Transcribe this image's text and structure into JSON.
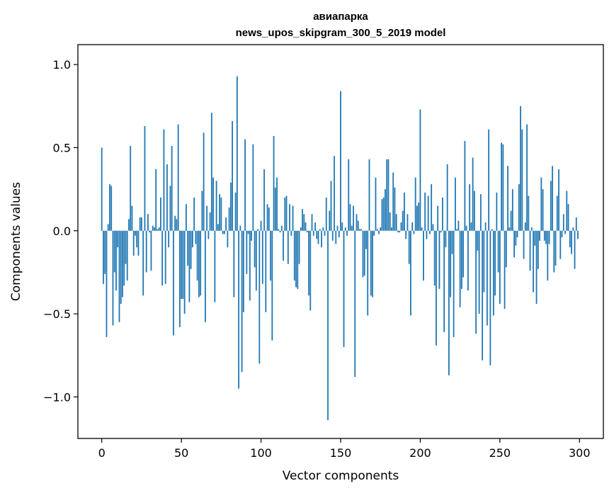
{
  "chart_data": {
    "type": "bar",
    "title": "авиапарка",
    "subtitle": "news_upos_skipgram_300_5_2019 model",
    "xlabel": "Vector components",
    "ylabel": "Components values",
    "xlim": [
      -15,
      315
    ],
    "ylim": [
      -1.25,
      1.12
    ],
    "xticks": [
      0,
      50,
      100,
      150,
      200,
      250,
      300
    ],
    "xtick_labels": [
      "0",
      "50",
      "100",
      "150",
      "200",
      "250",
      "300"
    ],
    "yticks": [
      -1.0,
      -0.5,
      0.0,
      0.5,
      1.0
    ],
    "ytick_labels": [
      "−1.0",
      "−0.5",
      "0.0",
      "0.5",
      "1.0"
    ],
    "grid": false,
    "bar_color": "#1f77b4",
    "values": [
      0.5,
      -0.32,
      -0.26,
      -0.64,
      0.04,
      0.28,
      0.27,
      -0.57,
      -0.25,
      -0.36,
      -0.1,
      -0.55,
      -0.44,
      -0.4,
      -0.33,
      -0.2,
      -0.3,
      0.07,
      0.51,
      0.15,
      -0.15,
      -0.03,
      -0.1,
      -0.15,
      0.08,
      0.08,
      -0.39,
      0.63,
      -0.25,
      0.1,
      -0.01,
      -0.24,
      0.03,
      0.02,
      0.37,
      0.01,
      0.02,
      0.2,
      -0.33,
      0.61,
      -0.32,
      0.4,
      -0.1,
      0.27,
      0.51,
      -0.63,
      0.09,
      0.07,
      0.64,
      -0.58,
      -0.41,
      -0.41,
      -0.5,
      0.16,
      -0.21,
      -0.43,
      -0.23,
      -0.1,
      0.2,
      -0.08,
      -0.3,
      -0.4,
      -0.39,
      0.24,
      0.59,
      -0.55,
      0.15,
      -0.05,
      0.11,
      0.71,
      0.32,
      -0.43,
      0.3,
      0.04,
      0.22,
      0.2,
      -0.02,
      -0.02,
      0.08,
      -0.1,
      0.14,
      0.29,
      0.66,
      -0.4,
      0.23,
      0.93,
      -0.95,
      0.03,
      -0.85,
      -0.49,
      0.55,
      -0.26,
      -0.02,
      -0.42,
      -0.06,
      0.52,
      -0.22,
      -0.36,
      0.01,
      -0.8,
      0.06,
      -0.32,
      0.37,
      -0.49,
      0.16,
      0.14,
      -0.3,
      -0.66,
      0.57,
      0.26,
      0.32,
      0.01,
      -0.01,
      0.03,
      -0.18,
      0.2,
      0.21,
      -0.2,
      0.16,
      -0.03,
      0.15,
      -0.3,
      -0.34,
      -0.35,
      -0.2,
      0.02,
      0.13,
      0.1,
      0.05,
      -0.01,
      -0.39,
      -0.48,
      0.1,
      -0.03,
      0.05,
      -0.05,
      -0.08,
      0.01,
      -0.1,
      0.02,
      -0.03,
      0.2,
      -1.14,
      0.12,
      0.3,
      -0.06,
      0.45,
      -0.08,
      0.03,
      -0.04,
      0.84,
      0.05,
      -0.7,
      0.02,
      -0.03,
      0.43,
      0.16,
      0.03,
      0.15,
      -0.88,
      0.1,
      0.06,
      0.01,
      0.01,
      -0.28,
      -0.27,
      -0.11,
      -0.51,
      0.43,
      -0.39,
      -0.4,
      -0.03,
      0.32,
      0.01,
      -0.02,
      0.02,
      0.19,
      0.2,
      0.25,
      0.43,
      0.43,
      0.11,
      0.02,
      0.35,
      0.26,
      0.1,
      -0.01,
      -0.01,
      0.05,
      0.12,
      0.23,
      -0.05,
      0.1,
      -0.2,
      -0.51,
      0.05,
      -0.02,
      0.32,
      0.15,
      0.17,
      0.73,
      0.02,
      -0.3,
      0.23,
      -0.05,
      0.21,
      -0.02,
      0.28,
      0.04,
      -0.33,
      -0.69,
      0.15,
      -0.35,
      -0.01,
      0.2,
      -0.61,
      -0.1,
      0.4,
      -0.87,
      -0.4,
      -0.14,
      -0.64,
      0.32,
      0.01,
      0.06,
      -0.46,
      -0.35,
      -0.28,
      0.54,
      0.03,
      -0.36,
      0.28,
      0.05,
      0.44,
      0.24,
      -0.62,
      -0.12,
      -0.5,
      0.22,
      -0.78,
      -0.37,
      0.05,
      -0.57,
      0.61,
      -0.81,
      0.01,
      -0.51,
      -0.39,
      0.23,
      -0.25,
      -0.44,
      0.53,
      0.52,
      -0.47,
      -0.22,
      0.39,
      0.02,
      0.12,
      0.25,
      -0.16,
      -0.09,
      -0.04,
      0.28,
      0.75,
      0.61,
      -0.17,
      0.05,
      0.64,
      0.21,
      -0.24,
      0.02,
      -0.37,
      -0.09,
      -0.44,
      -0.23,
      -0.06,
      0.32,
      0.25,
      -0.06,
      -0.08,
      -0.3,
      -0.08,
      0.3,
      0.39,
      -0.25,
      -0.21,
      0.21,
      0.37,
      -0.17,
      -0.04,
      0.1,
      -0.02,
      0.24,
      0.16,
      -0.1,
      -0.14,
      0.02,
      -0.23,
      0.08,
      -0.05
    ]
  }
}
